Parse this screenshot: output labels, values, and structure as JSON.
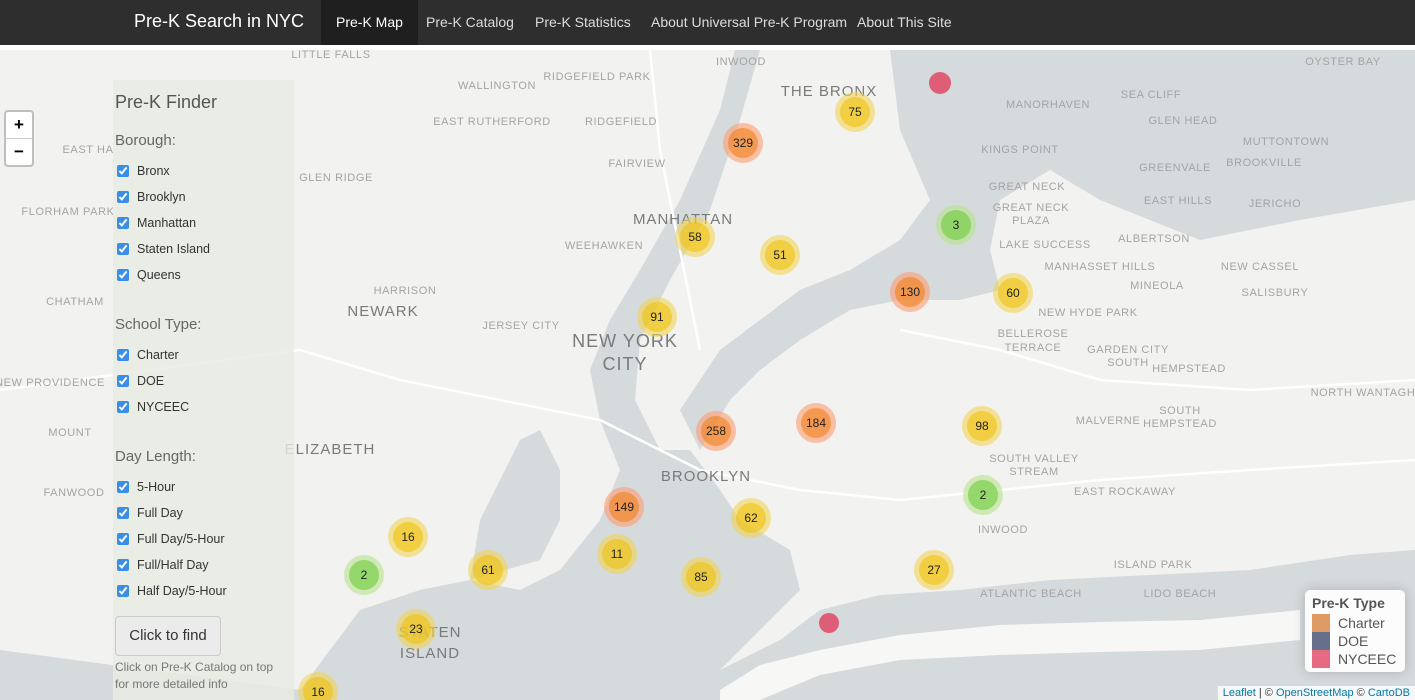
{
  "navbar": {
    "brand": "Pre-K Search in NYC",
    "items": [
      "Pre-K Map",
      "Pre-K Catalog",
      "Pre-K Statistics",
      "About Universal Pre-K Program",
      "About This Site"
    ]
  },
  "sidebar": {
    "title": "Pre-K Finder",
    "groups": [
      {
        "label": "Borough:",
        "options": [
          "Bronx",
          "Brooklyn",
          "Manhattan",
          "Staten Island",
          "Queens"
        ]
      },
      {
        "label": "School Type:",
        "options": [
          "Charter",
          "DOE",
          "NYCEEC"
        ]
      },
      {
        "label": "Day Length:",
        "options": [
          "5-Hour",
          "Full Day",
          "Full Day/5-Hour",
          "Full/Half Day",
          "Half Day/5-Hour"
        ]
      }
    ],
    "button": "Click to find",
    "note": [
      "Click on Pre-K Catalog on top",
      "for more detailed info"
    ]
  },
  "map": {
    "zoom": [
      "+",
      "−"
    ],
    "place_labels": [
      "LITTLE FALLS",
      "WALLINGTON",
      "RIDGEFIELD PARK",
      "INWOOD",
      "THE BRONX",
      "OYSTER BAY",
      "SEA CLIFF",
      "MANORHAVEN",
      "GLEN HEAD",
      "EAST RUTHERFORD",
      "RIDGEFIELD",
      "MUTTONTOWN",
      "KINGS POINT",
      "BROOKVILLE",
      "EAST HA",
      "FAIRVIEW",
      "GREENVALE",
      "GLEN RIDGE",
      "GREAT NECK",
      "EAST HILLS",
      "JERICHO",
      "FLORHAM PARK",
      "GREAT NECK",
      "PLAZA",
      "MANHATTAN",
      "WEEHAWKEN",
      "LAKE SUCCESS",
      "ALBERTSON",
      "MANHASSET HILLS",
      "NEW CASSEL",
      "MINEOLA",
      "HARRISON",
      "SALISBURY",
      "CHATHAM",
      "NEWARK",
      "NEW HYDE PARK",
      "JERSEY CITY",
      "BELLEROSE",
      "TERRACE",
      "NEW YORK",
      "CITY",
      "GARDEN CITY",
      "SOUTH",
      "HEMPSTEAD",
      "NEW PROVIDENCE",
      "NORTH WANTAGH",
      "SOUTH",
      "HEMPSTEAD",
      "MALVERNE",
      "MOUNT",
      "ELIZABETH",
      "SOUTH VALLEY",
      "STREAM",
      "BROOKLYN",
      "FANWOOD",
      "EAST ROCKAWAY",
      "INWOOD",
      "ISLAND PARK",
      "ATLANTIC BEACH",
      "LIDO BEACH",
      "STATEN",
      "ISLAND"
    ],
    "clusters": [
      75,
      329,
      3,
      58,
      51,
      130,
      60,
      91,
      258,
      184,
      98,
      2,
      149,
      62,
      16,
      11,
      2,
      61,
      85,
      27,
      23,
      16
    ],
    "attribution": [
      "Leaflet",
      " | © ",
      "OpenStreetMap",
      " © ",
      "CartoDB"
    ]
  },
  "legend": {
    "title": "Pre-K Type",
    "items": [
      {
        "label": "Charter",
        "color": "#d8884a"
      },
      {
        "label": "DOE",
        "color": "#4b5777"
      },
      {
        "label": "NYCEEC",
        "color": "#e0506c"
      }
    ]
  }
}
